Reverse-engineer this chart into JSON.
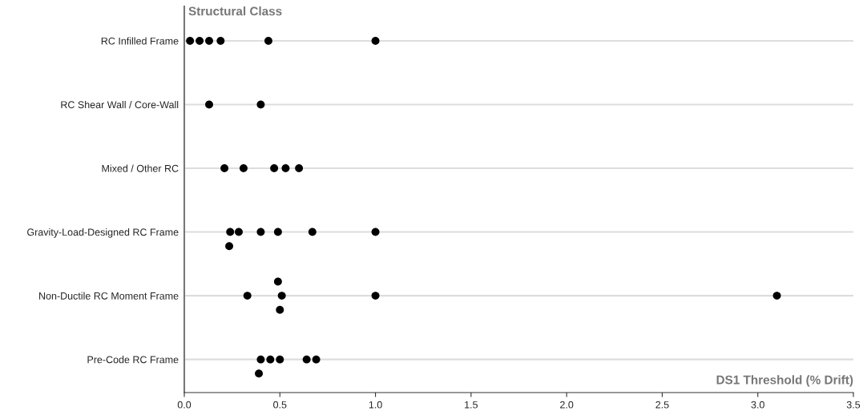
{
  "chart_data": {
    "type": "scatter",
    "orientation": "horizontal",
    "ylabel": "Structural Class",
    "xlabel": "DS1 Threshold (% Drift)",
    "categories": [
      "RC Infilled Frame",
      "RC Shear Wall / Core-Wall",
      "Mixed / Other RC",
      "Gravity-Load-Designed RC Frame",
      "Non-Ductile RC Moment Frame",
      "Pre-Code RC Frame"
    ],
    "series": [
      {
        "color": "#000000",
        "values": [
          0.03,
          0.13,
          0.21,
          0.235,
          0.33,
          0.39
        ]
      },
      {
        "color": "#000000",
        "values": [
          0.08,
          0.4,
          0.31,
          0.24,
          0.49,
          0.4
        ]
      },
      {
        "color": "#000000",
        "values": [
          0.13,
          null,
          0.47,
          0.285,
          0.5,
          0.45
        ]
      },
      {
        "color": "#000000",
        "values": [
          0.19,
          null,
          0.53,
          0.4,
          0.51,
          0.5
        ]
      },
      {
        "color": "#000000",
        "values": [
          0.44,
          null,
          0.6,
          0.49,
          1.0,
          0.64
        ]
      },
      {
        "color": "#000000",
        "values": [
          1.0,
          null,
          null,
          0.67,
          3.1,
          0.69
        ]
      },
      {
        "color": "#000000",
        "values": [
          null,
          null,
          null,
          1.0,
          null,
          null
        ]
      }
    ],
    "xlim": [
      0,
      3.5
    ],
    "xticks": [
      {
        "value": 0,
        "label": "0.0"
      },
      0.5,
      {
        "value": 1,
        "label": "1.0"
      },
      1.5,
      {
        "value": 2,
        "label": "2.0"
      },
      2.5,
      {
        "value": 3,
        "label": "3.0"
      },
      3.5
    ],
    "grid": "y",
    "marker": "circle",
    "legend": false
  }
}
